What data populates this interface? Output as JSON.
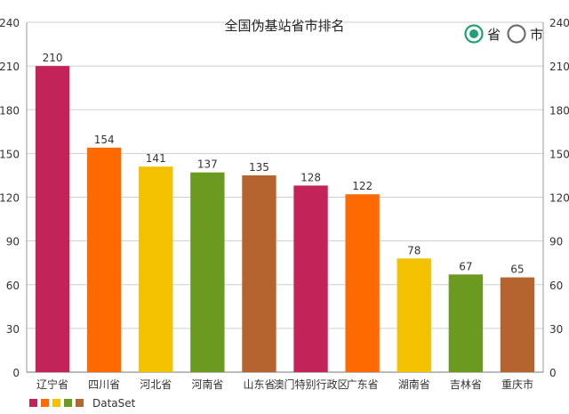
{
  "chart_data": {
    "type": "bar",
    "title": "全国伪基站省市排名",
    "categories": [
      "辽宁省",
      "四川省",
      "河北省",
      "河南省",
      "山东省",
      "澳门特别行政区",
      "广东省",
      "湖南省",
      "吉林省",
      "重庆市"
    ],
    "series": [
      {
        "name": "DataSet",
        "values": [
          210,
          154,
          141,
          137,
          135,
          128,
          122,
          78,
          67,
          65
        ]
      }
    ],
    "ylim": [
      0,
      240
    ],
    "yticks": [
      0,
      30,
      60,
      90,
      120,
      150,
      180,
      210,
      240
    ],
    "grid": true,
    "legend_position": "bottom-left",
    "colors": [
      "#C2245A",
      "#FF6A00",
      "#F2C200",
      "#6A9A1F",
      "#B5632F"
    ]
  },
  "toggle": {
    "options": [
      {
        "label": "省",
        "selected": true
      },
      {
        "label": "市",
        "selected": false
      }
    ],
    "selected_color": "#1FA174"
  }
}
